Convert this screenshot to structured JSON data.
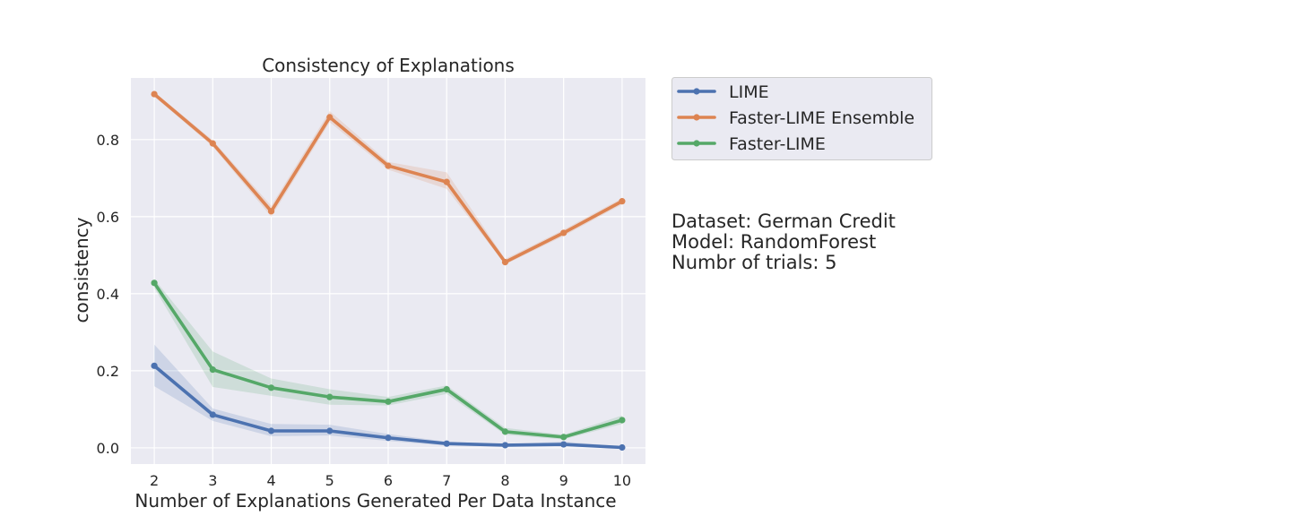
{
  "chart_data": {
    "type": "line",
    "title": "Consistency of Explanations",
    "xlabel": "Number of Explanations Generated Per Data Instance",
    "ylabel": "consistency",
    "x": [
      2,
      3,
      4,
      5,
      6,
      7,
      8,
      9,
      10
    ],
    "xlim": [
      1.6,
      10.4
    ],
    "ylim": [
      -0.042,
      0.96
    ],
    "yticks": [
      0.0,
      0.2,
      0.4,
      0.6,
      0.8
    ],
    "ytick_labels": [
      "0.0",
      "0.2",
      "0.4",
      "0.6",
      "0.8"
    ],
    "grid": true,
    "legend_position": "outside-top-right",
    "series": [
      {
        "name": "LIME",
        "color": "#4c72b0",
        "values": [
          0.213,
          0.086,
          0.044,
          0.044,
          0.026,
          0.011,
          0.007,
          0.009,
          0.001
        ],
        "lower": [
          0.16,
          0.07,
          0.03,
          0.032,
          0.018,
          0.006,
          0.004,
          0.004,
          0.0
        ],
        "upper": [
          0.268,
          0.102,
          0.062,
          0.06,
          0.036,
          0.016,
          0.01,
          0.016,
          0.004
        ]
      },
      {
        "name": "Faster-LIME Ensemble",
        "color": "#dd8452",
        "values": [
          0.918,
          0.79,
          0.614,
          0.858,
          0.732,
          0.69,
          0.482,
          0.558,
          0.64
        ],
        "lower": [
          0.912,
          0.782,
          0.6,
          0.845,
          0.722,
          0.672,
          0.476,
          0.55,
          0.632
        ],
        "upper": [
          0.924,
          0.798,
          0.628,
          0.874,
          0.742,
          0.715,
          0.49,
          0.566,
          0.648
        ]
      },
      {
        "name": "Faster-LIME",
        "color": "#55a868",
        "values": [
          0.428,
          0.203,
          0.156,
          0.132,
          0.12,
          0.152,
          0.042,
          0.028,
          0.072
        ],
        "lower": [
          0.415,
          0.158,
          0.135,
          0.112,
          0.11,
          0.14,
          0.034,
          0.022,
          0.062
        ],
        "upper": [
          0.438,
          0.25,
          0.18,
          0.152,
          0.132,
          0.162,
          0.052,
          0.034,
          0.084
        ]
      }
    ],
    "annotations": [
      "Dataset: German Credit",
      "Model: RandomForest",
      "Numbr of trials: 5"
    ]
  },
  "colors": {
    "plot_background": "#eaeaf2",
    "grid": "#ffffff",
    "legend_background": "#eaeaf2",
    "legend_border": "#cccccc"
  }
}
